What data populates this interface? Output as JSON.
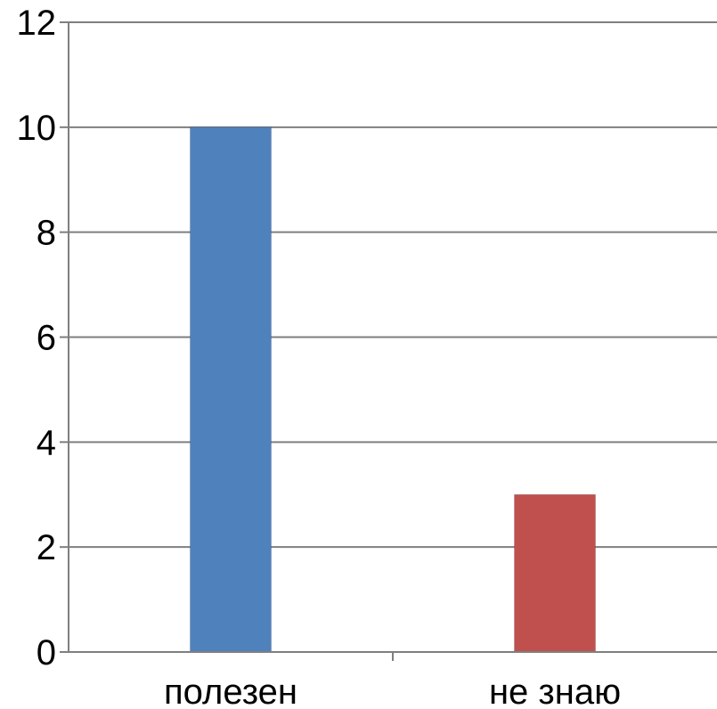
{
  "chart_data": {
    "type": "bar",
    "categories": [
      "полезен",
      "не знаю"
    ],
    "series": [
      {
        "values": [
          10,
          3
        ],
        "colors": [
          "#4F81BD",
          "#C0504D"
        ]
      }
    ],
    "ylim": [
      0,
      12
    ],
    "yticks": [
      0,
      2,
      4,
      6,
      8,
      10,
      12
    ],
    "ytick_labels": [
      "0",
      "2",
      "4",
      "6",
      "8",
      "10",
      "12"
    ],
    "grid": true,
    "legend": "none"
  }
}
